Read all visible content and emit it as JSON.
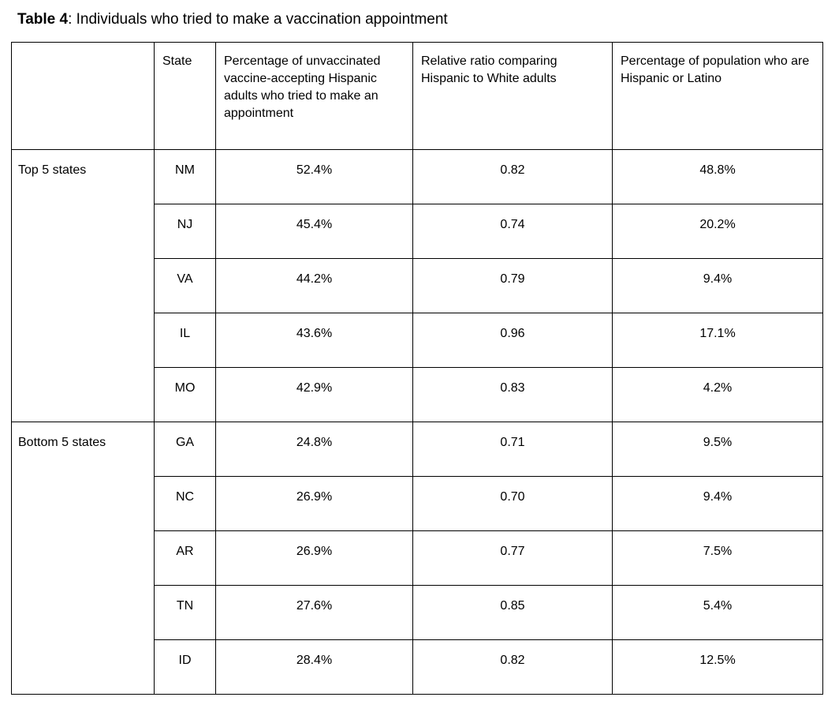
{
  "title": {
    "bold": "Table 4",
    "rest": ": Individuals who tried to make a vaccination appointment"
  },
  "table": {
    "headers": [
      "",
      "State",
      "Percentage of unvaccinated vaccine-accepting Hispanic adults who tried to make an appointment",
      "Relative ratio comparing Hispanic to White adults",
      "Percentage of population who are Hispanic or Latino"
    ],
    "groups": [
      {
        "label": "Top 5 states",
        "rows": [
          [
            "NM",
            "52.4%",
            "0.82",
            "48.8%"
          ],
          [
            "NJ",
            "45.4%",
            "0.74",
            "20.2%"
          ],
          [
            "VA",
            "44.2%",
            "0.79",
            "9.4%"
          ],
          [
            "IL",
            "43.6%",
            "0.96",
            "17.1%"
          ],
          [
            "MO",
            "42.9%",
            "0.83",
            "4.2%"
          ]
        ]
      },
      {
        "label": "Bottom 5 states",
        "rows": [
          [
            "GA",
            "24.8%",
            "0.71",
            "9.5%"
          ],
          [
            "NC",
            "26.9%",
            "0.70",
            "9.4%"
          ],
          [
            "AR",
            "26.9%",
            "0.77",
            "7.5%"
          ],
          [
            "TN",
            "27.6%",
            "0.85",
            "5.4%"
          ],
          [
            "ID",
            "28.4%",
            "0.82",
            "12.5%"
          ]
        ]
      }
    ]
  }
}
